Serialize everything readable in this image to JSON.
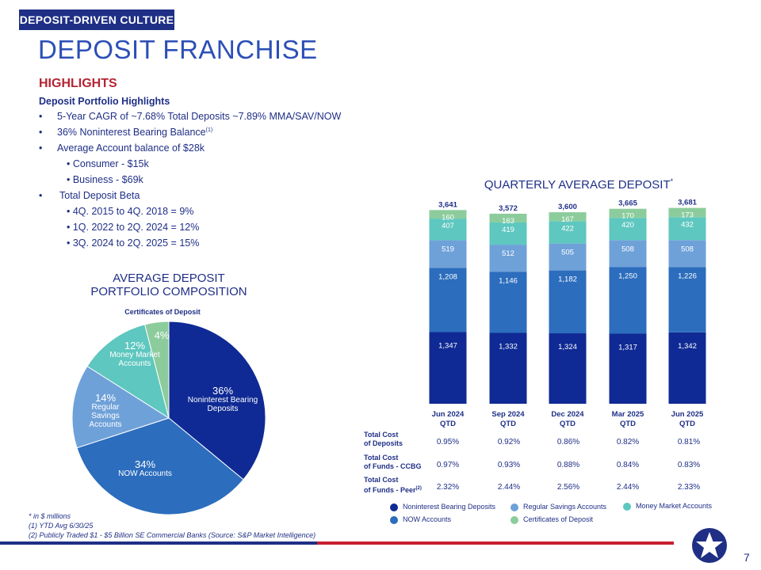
{
  "header": {
    "section_tag": "DEPOSIT-DRIVEN CULTURE",
    "title": "DEPOSIT FRANCHISE"
  },
  "highlights": {
    "heading": "HIGHLIGHTS",
    "subheading": "Deposit Portfolio Highlights",
    "bullets": [
      "5-Year CAGR of ~7.68% Total Deposits ~7.89% MMA/SAV/NOW",
      "36% Noninterest Bearing Balance",
      "Average Account balance of $28k",
      "Total Deposit Beta"
    ],
    "bullet_sup": "(1)",
    "balance_subs": [
      "• Consumer - $15k",
      "• Business - $69k"
    ],
    "beta_subs": [
      "• 4Q. 2015 to 4Q. 2018 = 9%",
      "• 1Q. 2022 to 2Q. 2024 = 12%",
      "• 3Q. 2024 to 2Q. 2025 = 15%"
    ]
  },
  "pie": {
    "title_line1": "AVERAGE DEPOSIT",
    "title_line2": "PORTFOLIO COMPOSITION",
    "callout": "Certificates of Deposit",
    "slices": [
      {
        "label": "Noninterest Bearing Deposits",
        "pct": "36%",
        "value": 36,
        "color": "#0f2a94"
      },
      {
        "label": "NOW Accounts",
        "pct": "34%",
        "value": 34,
        "color": "#2c6dbd"
      },
      {
        "label": "Regular Savings Accounts",
        "pct": "14%",
        "value": 14,
        "color": "#6fa1d9"
      },
      {
        "label": "Money Market Accounts",
        "pct": "12%",
        "value": 12,
        "color": "#5ec7bf"
      },
      {
        "label": "Certificates of Deposit",
        "pct": "4%",
        "value": 4,
        "color": "#8ccc9c"
      }
    ]
  },
  "chart_data": {
    "type": "bar",
    "title": "QUARTERLY AVERAGE DEPOSIT",
    "title_sup": "*",
    "categories": [
      "Jun 2024\nQTD",
      "Sep 2024\nQTD",
      "Dec 2024\nQTD",
      "Mar 2025\nQTD",
      "Jun 2025\nQTD"
    ],
    "totals": [
      "3,641",
      "3,572",
      "3,600",
      "3,665",
      "3,681"
    ],
    "series": [
      {
        "name": "Noninterest Bearing Deposits",
        "color": "#0f2a94",
        "values": [
          1347,
          1332,
          1324,
          1317,
          1342
        ],
        "labels": [
          "1,347",
          "1,332",
          "1,324",
          "1,317",
          "1,342"
        ]
      },
      {
        "name": "NOW Accounts",
        "color": "#2c6dbd",
        "values": [
          1208,
          1146,
          1182,
          1250,
          1226
        ],
        "labels": [
          "1,208",
          "1,146",
          "1,182",
          "1,250",
          "1,226"
        ]
      },
      {
        "name": "Regular Savings Accounts",
        "color": "#6fa1d9",
        "values": [
          519,
          512,
          505,
          508,
          508
        ],
        "labels": [
          "519",
          "512",
          "505",
          "508",
          "508"
        ]
      },
      {
        "name": "Money Market Accounts",
        "color": "#5ec7bf",
        "values": [
          407,
          419,
          422,
          420,
          432
        ],
        "labels": [
          "407",
          "419",
          "422",
          "420",
          "432"
        ]
      },
      {
        "name": "Certificates of Deposit",
        "color": "#8ccc9c",
        "values": [
          160,
          163,
          167,
          170,
          173
        ],
        "labels": [
          "160",
          "163",
          "167",
          "170",
          "173"
        ]
      }
    ],
    "stacked": true
  },
  "cost_table": {
    "rows": [
      {
        "label1": "Total Cost",
        "label2": "of Deposits",
        "sup": "",
        "values": [
          "0.95%",
          "0.92%",
          "0.86%",
          "0.82%",
          "0.81%"
        ]
      },
      {
        "label1": "Total Cost",
        "label2": "of Funds - CCBG",
        "sup": "",
        "values": [
          "0.97%",
          "0.93%",
          "0.88%",
          "0.84%",
          "0.83%"
        ]
      },
      {
        "label1": "Total Cost",
        "label2": "of Funds - Peer",
        "sup": "(2)",
        "values": [
          "2.32%",
          "2.44%",
          "2.56%",
          "2.44%",
          "2.33%"
        ]
      }
    ]
  },
  "legend": [
    {
      "label": "Noninterest Bearing Deposits",
      "color": "#0f2a94"
    },
    {
      "label": "Regular Savings Accounts",
      "color": "#6fa1d9"
    },
    {
      "label": "Money Market Accounts",
      "color": "#5ec7bf"
    },
    {
      "label": "NOW Accounts",
      "color": "#2c6dbd"
    },
    {
      "label": "Certificates of Deposit",
      "color": "#8ccc9c"
    }
  ],
  "footnotes": [
    "* in $ millions",
    "(1) YTD Avg 6/30/25",
    "(2) Publicly Traded $1 - $5 Billion SE Commercial Banks (Source: S&P Market Intelligence)"
  ],
  "page_number": "7",
  "colors": {
    "navy": "#1f2f86",
    "red": "#b52434",
    "title_blue": "#2c4fb7"
  }
}
